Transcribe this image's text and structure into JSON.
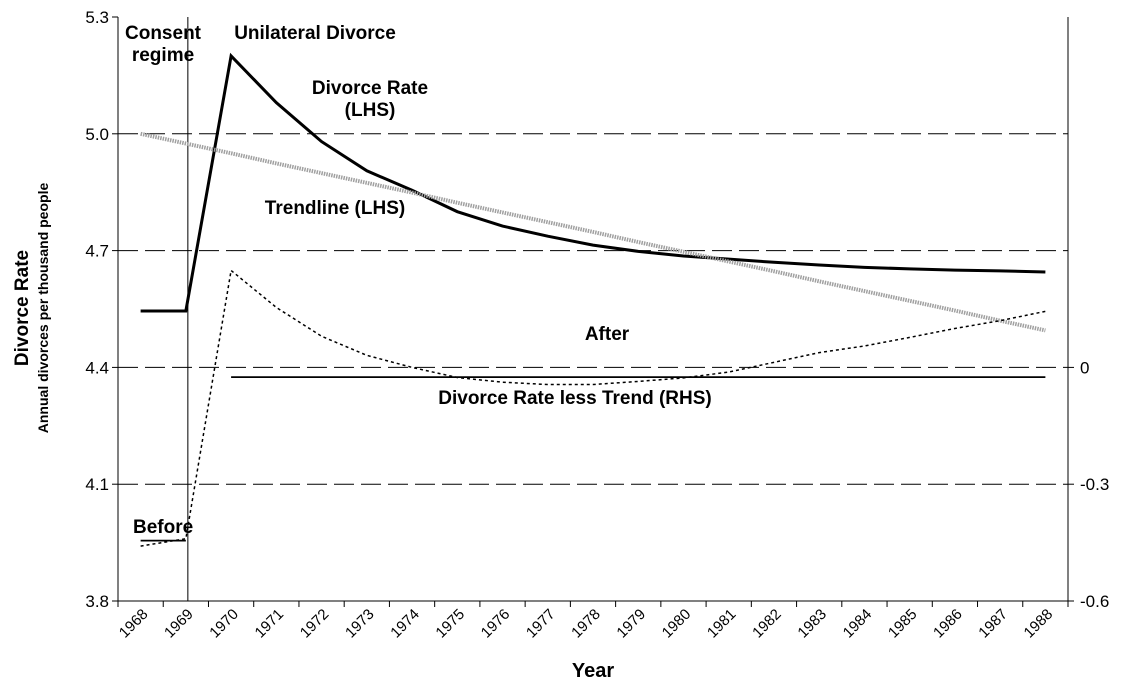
{
  "chart_data": {
    "type": "line",
    "x_label": "Year",
    "y_label": "Divorce Rate",
    "y_sublabel": "Annual divorces per thousand people",
    "annotations": [
      "Consent regime",
      "Unilateral Divorce"
    ],
    "categories": [
      "1968",
      "1969",
      "1970",
      "1971",
      "1972",
      "1973",
      "1974",
      "1975",
      "1976",
      "1977",
      "1978",
      "1979",
      "1980",
      "1981",
      "1982",
      "1983",
      "1984",
      "1985",
      "1986",
      "1987",
      "1988"
    ],
    "series": [
      {
        "name": "Divorce Rate (LHS)",
        "color": "#000000",
        "style": "solid",
        "values": [
          4.545,
          4.545,
          5.2,
          5.08,
          4.98,
          4.905,
          4.855,
          4.8,
          4.763,
          4.737,
          4.714,
          4.698,
          4.686,
          4.678,
          4.67,
          4.663,
          4.657,
          4.653,
          4.65,
          4.648,
          4.645
        ]
      },
      {
        "name": "Trendline (LHS)",
        "color": "#a0a0a0",
        "style": "dotted",
        "values": [
          5.0,
          4.975,
          4.95,
          4.924,
          4.899,
          4.874,
          4.849,
          4.823,
          4.798,
          4.773,
          4.748,
          4.722,
          4.697,
          4.672,
          4.647,
          4.621,
          4.596,
          4.571,
          4.546,
          4.52,
          4.495
        ]
      },
      {
        "name": "Divorce Rate less Trend (RHS)",
        "color": "#000000",
        "style": "dashed",
        "axis": "y2",
        "values": [
          -0.459,
          -0.44,
          0.249,
          0.154,
          0.08,
          0.031,
          0.0,
          -0.026,
          -0.038,
          -0.044,
          -0.044,
          -0.036,
          -0.027,
          -0.012,
          0.013,
          0.038,
          0.055,
          0.077,
          0.1,
          0.12,
          0.144
        ]
      },
      {
        "name": "Before",
        "color": "#000000",
        "style": "thin",
        "axis": "y2",
        "values": [
          -0.445,
          -0.445,
          null,
          null,
          null,
          null,
          null,
          null,
          null,
          null,
          null,
          null,
          null,
          null,
          null,
          null,
          null,
          null,
          null,
          null,
          null
        ]
      },
      {
        "name": "After",
        "color": "#000000",
        "style": "thin",
        "axis": "y2",
        "values": [
          null,
          null,
          -0.025,
          -0.025,
          -0.025,
          -0.025,
          -0.025,
          -0.025,
          -0.025,
          -0.025,
          -0.025,
          -0.025,
          -0.025,
          -0.025,
          -0.025,
          -0.025,
          -0.025,
          -0.025,
          -0.025,
          -0.025,
          -0.025
        ]
      }
    ],
    "ylim": [
      3.8,
      5.3
    ],
    "yticks": [
      {
        "value": 3.8,
        "label": "3.8"
      },
      {
        "value": 4.1,
        "label": "4.1"
      },
      {
        "value": 4.4,
        "label": "4.4"
      },
      {
        "value": 4.7,
        "label": "4.7"
      },
      {
        "value": 5.0,
        "label": "5.0"
      },
      {
        "value": 5.3,
        "label": "5.3"
      }
    ],
    "y2lim": [
      -0.6,
      0.9
    ],
    "y2ticks": [
      -0.6,
      -0.3,
      0
    ],
    "grid": true
  }
}
